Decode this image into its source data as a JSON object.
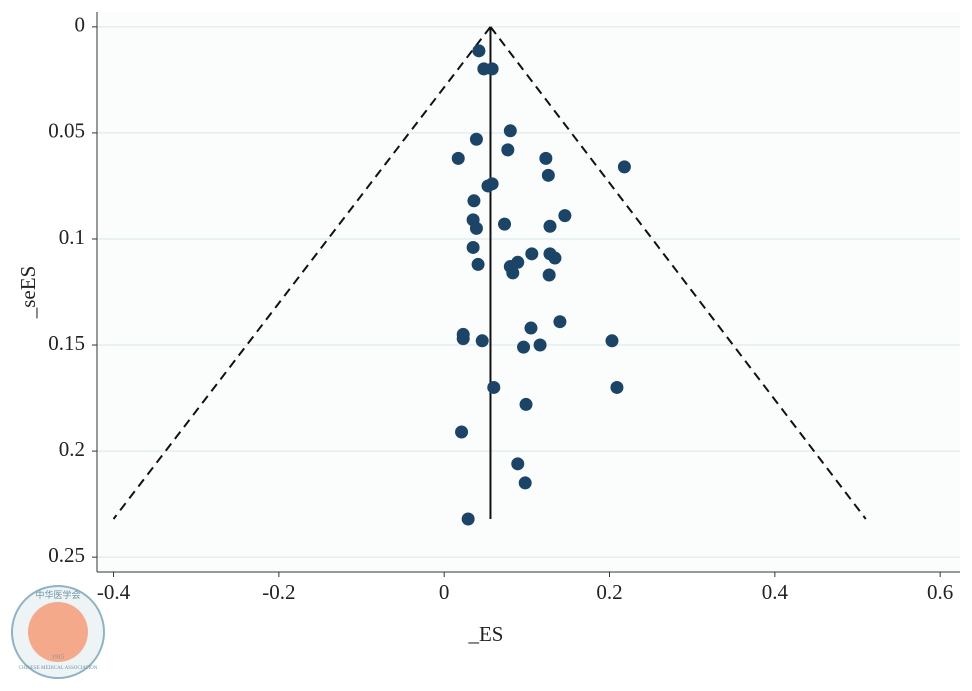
{
  "chart_data": {
    "type": "scatter",
    "x_label": "_ES",
    "y_label": "_seES",
    "xlim": [
      -0.42,
      0.624
    ],
    "ylim": [
      -0.007,
      0.257
    ],
    "y_reversed": true,
    "xticks": [
      -0.4,
      -0.2,
      0,
      0.2,
      0.4,
      0.6
    ],
    "yticks": [
      0,
      0.05,
      0.1,
      0.15,
      0.2,
      0.25
    ],
    "grid": true,
    "series": [
      {
        "color": "#1c4466",
        "x": [
          0.042,
          0.048,
          0.058,
          0.08,
          0.039,
          0.077,
          0.017,
          0.123,
          0.218,
          0.126,
          0.058,
          0.053,
          0.036,
          0.146,
          0.035,
          0.073,
          0.039,
          0.128,
          0.035,
          0.106,
          0.128,
          0.134,
          0.089,
          0.041,
          0.08,
          0.083,
          0.127,
          0.14,
          0.105,
          0.023,
          0.023,
          0.046,
          0.203,
          0.116,
          0.096,
          0.06,
          0.209,
          0.099,
          0.021,
          0.089,
          0.098,
          0.029
        ],
        "values": [
          0.0113,
          0.0198,
          0.0198,
          0.049,
          0.053,
          0.058,
          0.062,
          0.062,
          0.066,
          0.07,
          0.074,
          0.075,
          0.082,
          0.089,
          0.091,
          0.093,
          0.095,
          0.094,
          0.104,
          0.107,
          0.107,
          0.109,
          0.111,
          0.112,
          0.113,
          0.116,
          0.117,
          0.139,
          0.142,
          0.145,
          0.147,
          0.148,
          0.148,
          0.15,
          0.151,
          0.17,
          0.17,
          0.178,
          0.191,
          0.206,
          0.215,
          0.232
        ]
      }
    ],
    "pooled_es": 0.056,
    "funnel": {
      "se_max": 0.232,
      "lower_es": -0.4,
      "upper_es": 0.51
    }
  },
  "watermark": {
    "chinese": "中华医学会",
    "english": "CHINESE MEDICAL ASSOCIATION",
    "year": "1915"
  }
}
